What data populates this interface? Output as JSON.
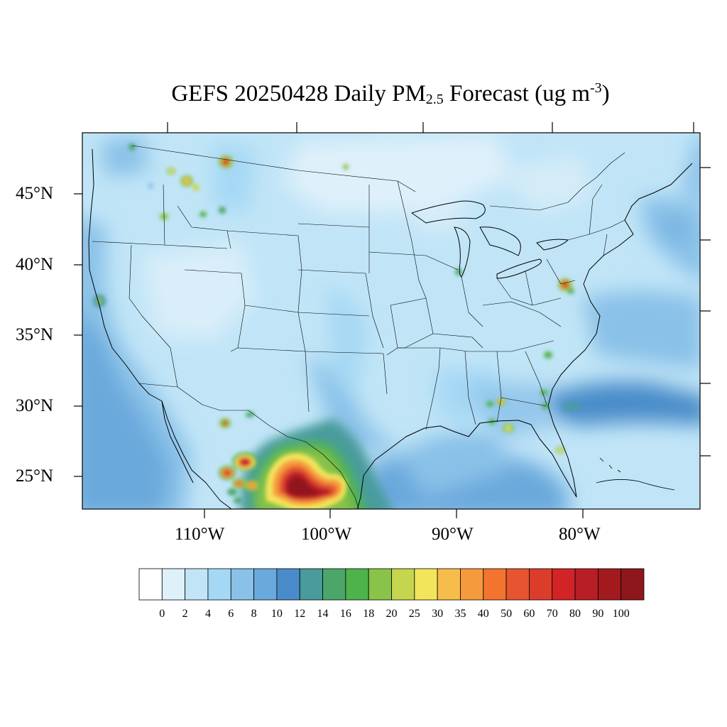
{
  "title": {
    "prefix": "GEFS 20250428 Daily PM",
    "subscript": "2.5",
    "middle": " Forecast (ug m",
    "superscript": "-3",
    "suffix": ")"
  },
  "lat_labels": [
    "45°N",
    "40°N",
    "35°N",
    "30°N",
    "25°N"
  ],
  "lon_labels": [
    "110°W",
    "100°W",
    "90°W",
    "80°W"
  ],
  "colorbar": {
    "tick_labels": [
      "0",
      "2",
      "4",
      "6",
      "8",
      "10",
      "12",
      "14",
      "16",
      "18",
      "20",
      "25",
      "30",
      "35",
      "40",
      "50",
      "60",
      "70",
      "80",
      "90",
      "100"
    ],
    "colors": [
      "#ffffff",
      "#def0fa",
      "#c1e5f7",
      "#a5d8f4",
      "#89c1e8",
      "#6aa9dc",
      "#4a8cc9",
      "#4a9b9c",
      "#4ca66a",
      "#4eb34a",
      "#89c34a",
      "#c5d54d",
      "#f3e55b",
      "#f6bd4b",
      "#f59b3e",
      "#f2742f",
      "#e65530",
      "#dc3d2a",
      "#d22327",
      "#b81f25",
      "#a21a1e",
      "#8e171b"
    ]
  },
  "map": {
    "region": "Continental United States",
    "background_level_color": "#c1e5f7",
    "ocean_color": "#6aa9dc",
    "hotspots": [
      {
        "name": "Northern Mexico / South Texas smoke plume",
        "lon": -102.5,
        "lat": 24.8,
        "peak": 100
      },
      {
        "name": "Chihuahua fire cluster",
        "lon": -106.5,
        "lat": 25.5,
        "peak": 70
      },
      {
        "name": "Sinaloa fire cluster",
        "lon": -108.3,
        "lat": 25.2,
        "peak": 60
      },
      {
        "name": "Montana fire",
        "lon": -110.0,
        "lat": 47.3,
        "peak": 90
      },
      {
        "name": "Idaho fire",
        "lon": -112.5,
        "lat": 46.0,
        "peak": 40
      },
      {
        "name": "Maryland / DC area",
        "lon": -76.8,
        "lat": 39.0,
        "peak": 80
      },
      {
        "name": "Chihuahua north",
        "lon": -108.0,
        "lat": 28.7,
        "peak": 60
      },
      {
        "name": "Alabama / Florida panhandle",
        "lon": -86.5,
        "lat": 30.7,
        "peak": 35
      },
      {
        "name": "Southern Georgia",
        "lon": -84.6,
        "lat": 31.0,
        "peak": 30
      },
      {
        "name": "Central Florida",
        "lon": -81.8,
        "lat": 27.5,
        "peak": 25
      },
      {
        "name": "North Carolina",
        "lon": -79.3,
        "lat": 35.6,
        "peak": 20
      }
    ]
  }
}
